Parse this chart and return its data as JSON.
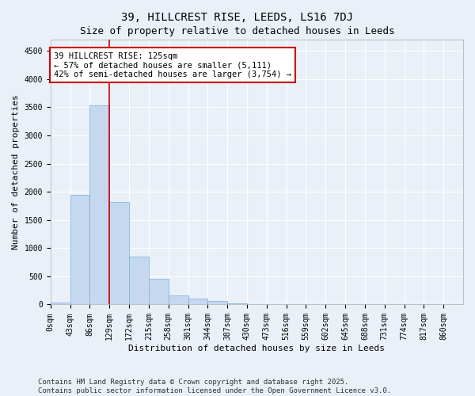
{
  "title": "39, HILLCREST RISE, LEEDS, LS16 7DJ",
  "subtitle": "Size of property relative to detached houses in Leeds",
  "xlabel": "Distribution of detached houses by size in Leeds",
  "ylabel": "Number of detached properties",
  "bar_labels": [
    "0sqm",
    "43sqm",
    "86sqm",
    "129sqm",
    "172sqm",
    "215sqm",
    "258sqm",
    "301sqm",
    "344sqm",
    "387sqm",
    "430sqm",
    "473sqm",
    "516sqm",
    "559sqm",
    "602sqm",
    "645sqm",
    "688sqm",
    "731sqm",
    "774sqm",
    "817sqm",
    "860sqm"
  ],
  "bar_values": [
    30,
    1950,
    3530,
    1820,
    850,
    450,
    155,
    105,
    65,
    20,
    5,
    0,
    0,
    0,
    0,
    0,
    0,
    0,
    0,
    0,
    0
  ],
  "bar_color": "#c5d8f0",
  "bar_edge_color": "#7bafd4",
  "ylim": [
    0,
    4700
  ],
  "yticks": [
    0,
    500,
    1000,
    1500,
    2000,
    2500,
    3000,
    3500,
    4000,
    4500
  ],
  "property_line_x": 3.0,
  "annotation_text": "39 HILLCREST RISE: 125sqm\n← 57% of detached houses are smaller (5,111)\n42% of semi-detached houses are larger (3,754) →",
  "annotation_box_color": "#ffffff",
  "annotation_box_edge": "#cc0000",
  "property_line_color": "#cc0000",
  "background_color": "#eaf0f8",
  "plot_bg_color": "#eaf0f8",
  "footer_line1": "Contains HM Land Registry data © Crown copyright and database right 2025.",
  "footer_line2": "Contains public sector information licensed under the Open Government Licence v3.0.",
  "title_fontsize": 10,
  "axis_label_fontsize": 8,
  "tick_fontsize": 7,
  "annotation_fontsize": 7.5,
  "footer_fontsize": 6.5
}
